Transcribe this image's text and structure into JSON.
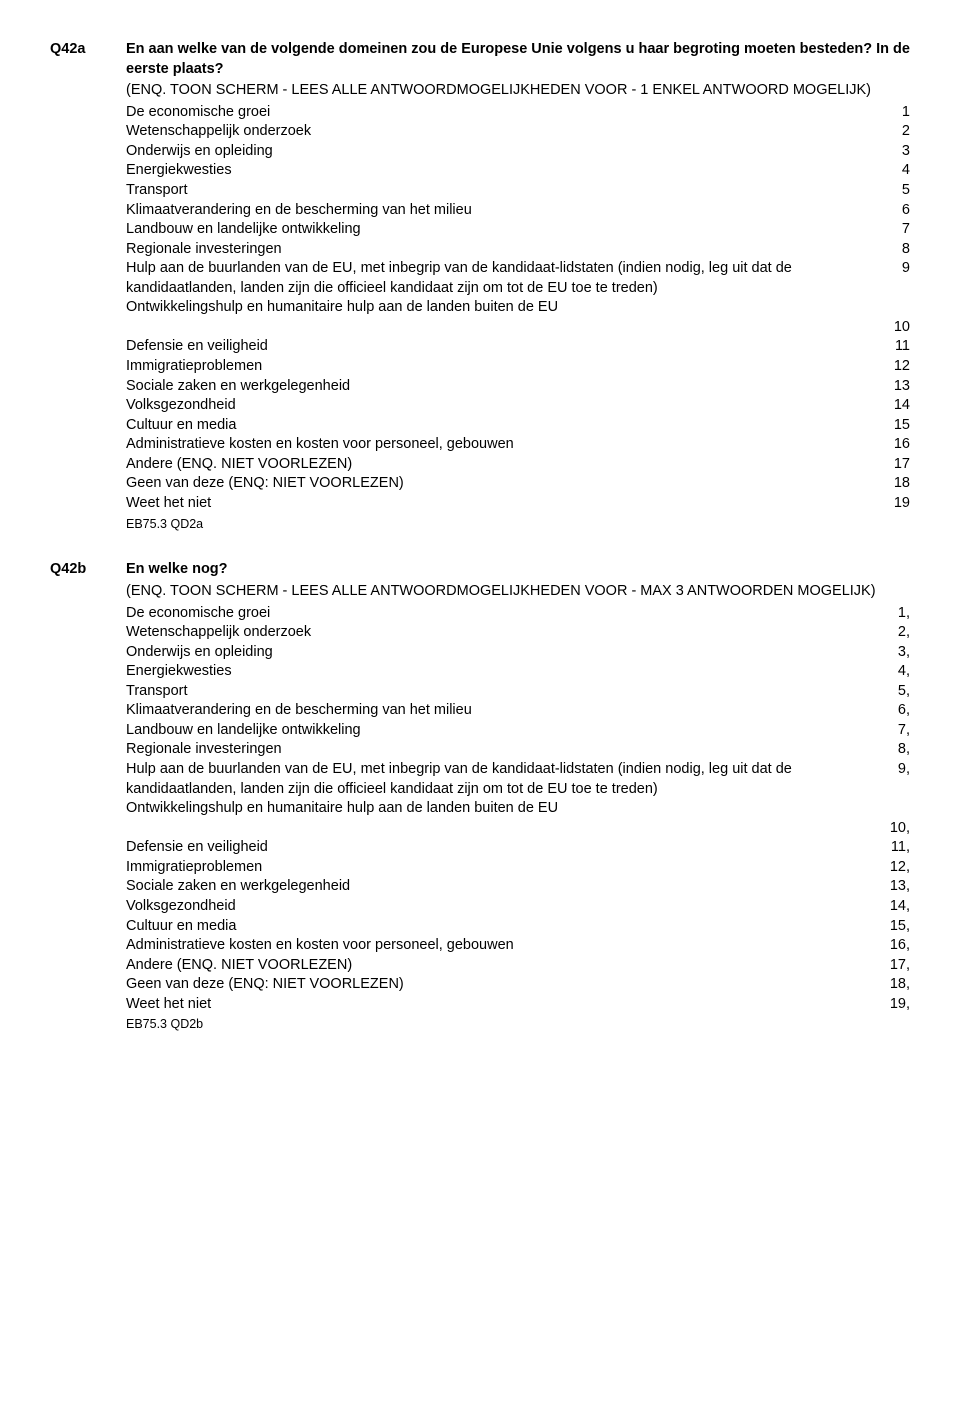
{
  "q42a": {
    "label": "Q42a",
    "title": "En aan welke van de volgende domeinen zou de Europese Unie volgens u haar begroting moeten besteden? In de eerste plaats?",
    "instr1": "(ENQ. TOON SCHERM - LEES ALLE ANTWOORDMOGELIJKHEDEN VOOR - 1 ENKEL ANTWOORD MOGELIJK)",
    "options": [
      {
        "text": "De economische groei",
        "num": "1"
      },
      {
        "text": "Wetenschappelijk onderzoek",
        "num": "2"
      },
      {
        "text": "Onderwijs en opleiding",
        "num": "3"
      },
      {
        "text": "Energiekwesties",
        "num": "4"
      },
      {
        "text": "Transport",
        "num": "5"
      },
      {
        "text": "Klimaatverandering en de bescherming van het milieu",
        "num": "6"
      },
      {
        "text": "Landbouw en landelijke ontwikkeling",
        "num": "7"
      },
      {
        "text": "Regionale investeringen",
        "num": "8"
      },
      {
        "text": "Hulp aan de buurlanden van de EU, met inbegrip van de kandidaat-lidstaten (indien nodig, leg uit dat de kandidaatlanden, landen zijn die officieel kandidaat zijn om tot de EU toe te treden)",
        "num": "9"
      },
      {
        "text": "Ontwikkelingshulp en humanitaire hulp aan de landen buiten de EU",
        "num": "10",
        "numBelow": true
      },
      {
        "text": "Defensie en veiligheid",
        "num": "11"
      },
      {
        "text": "Immigratieproblemen",
        "num": "12"
      },
      {
        "text": "Sociale zaken en werkgelegenheid",
        "num": "13"
      },
      {
        "text": "Volksgezondheid",
        "num": "14"
      },
      {
        "text": "Cultuur en media",
        "num": "15"
      },
      {
        "text": "Administratieve kosten en kosten voor personeel, gebouwen",
        "num": "16"
      },
      {
        "text": "Andere (ENQ. NIET VOORLEZEN)",
        "num": "17"
      },
      {
        "text": "Geen van deze (ENQ: NIET VOORLEZEN)",
        "num": "18"
      },
      {
        "text": "Weet het niet",
        "num": "19"
      }
    ],
    "ebcode": "EB75.3 QD2a"
  },
  "q42b": {
    "label": "Q42b",
    "title": "En welke nog?",
    "instr1": "(ENQ. TOON SCHERM - LEES ALLE ANTWOORDMOGELIJKHEDEN VOOR - MAX 3 ANTWOORDEN MOGELIJK)",
    "options": [
      {
        "text": "De economische groei",
        "num": "1,"
      },
      {
        "text": "Wetenschappelijk onderzoek",
        "num": "2,"
      },
      {
        "text": "Onderwijs en opleiding",
        "num": "3,"
      },
      {
        "text": "Energiekwesties",
        "num": "4,"
      },
      {
        "text": "Transport",
        "num": "5,"
      },
      {
        "text": "Klimaatverandering en de bescherming van het milieu",
        "num": "6,"
      },
      {
        "text": "Landbouw en landelijke ontwikkeling",
        "num": "7,"
      },
      {
        "text": "Regionale investeringen",
        "num": "8,"
      },
      {
        "text": "Hulp aan de buurlanden van de EU, met inbegrip van de kandidaat-lidstaten (indien nodig, leg uit dat de kandidaatlanden, landen zijn die officieel kandidaat zijn om tot de EU toe te treden)",
        "num": "9,"
      },
      {
        "text": "Ontwikkelingshulp en humanitaire hulp aan de landen buiten de EU",
        "num": "10,",
        "numBelow": true
      },
      {
        "text": "Defensie en veiligheid",
        "num": "11,"
      },
      {
        "text": "Immigratieproblemen",
        "num": "12,"
      },
      {
        "text": "Sociale zaken en werkgelegenheid",
        "num": "13,"
      },
      {
        "text": "Volksgezondheid",
        "num": "14,"
      },
      {
        "text": "Cultuur en media",
        "num": "15,"
      },
      {
        "text": "Administratieve kosten en kosten voor personeel, gebouwen",
        "num": "16,"
      },
      {
        "text": "Andere (ENQ. NIET VOORLEZEN)",
        "num": "17,"
      },
      {
        "text": "Geen van deze (ENQ: NIET VOORLEZEN)",
        "num": "18,"
      },
      {
        "text": "Weet het niet",
        "num": "19,"
      }
    ],
    "ebcode": "EB75.3 QD2b"
  }
}
